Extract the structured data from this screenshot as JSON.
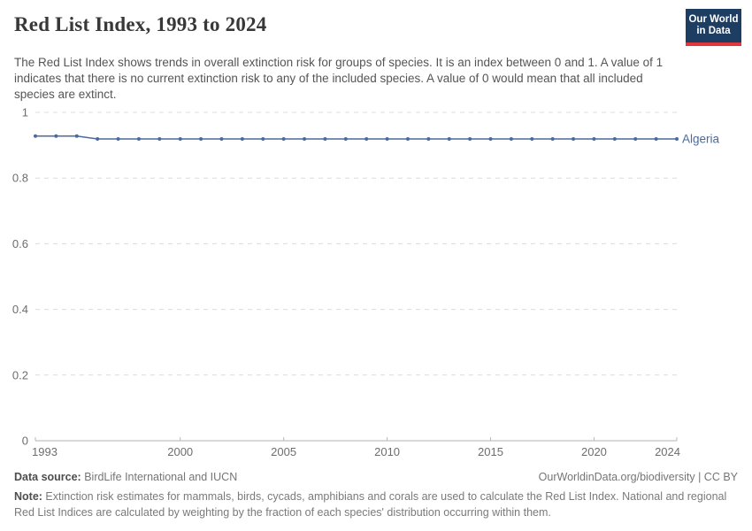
{
  "header": {
    "title": "Red List Index, 1993 to 2024",
    "subtitle": "The Red List Index shows trends in overall extinction risk for groups of species. It is an index between 0 and 1. A value of 1 indicates that there is no current extinction risk to any of the included species. A value of 0 would mean that all included species are extinct.",
    "logo": {
      "line1": "Our World",
      "line2": "in Data",
      "bg": "#1d3d63",
      "accent": "#e0373f"
    }
  },
  "chart_data": {
    "type": "line",
    "title": "Red List Index, 1993 to 2024",
    "xlabel": "",
    "ylabel": "",
    "xlim": [
      1993,
      2024
    ],
    "ylim": [
      0,
      1
    ],
    "xticks": [
      1993,
      2000,
      2005,
      2010,
      2015,
      2020,
      2024
    ],
    "yticks": [
      0,
      0.2,
      0.4,
      0.6,
      0.8,
      1
    ],
    "grid": "horizontal-dashed",
    "legend_position": "right-of-line",
    "series": [
      {
        "name": "Algeria",
        "color": "#4c6a9c",
        "x": [
          1993,
          1994,
          1995,
          1996,
          1997,
          1998,
          1999,
          2000,
          2001,
          2002,
          2003,
          2004,
          2005,
          2006,
          2007,
          2008,
          2009,
          2010,
          2011,
          2012,
          2013,
          2014,
          2015,
          2016,
          2017,
          2018,
          2019,
          2020,
          2021,
          2022,
          2023,
          2024
        ],
        "values": [
          0.928,
          0.928,
          0.928,
          0.919,
          0.919,
          0.919,
          0.919,
          0.919,
          0.919,
          0.919,
          0.919,
          0.919,
          0.919,
          0.919,
          0.919,
          0.919,
          0.919,
          0.919,
          0.919,
          0.919,
          0.919,
          0.919,
          0.919,
          0.919,
          0.919,
          0.919,
          0.919,
          0.919,
          0.919,
          0.919,
          0.919,
          0.919
        ]
      }
    ]
  },
  "footer": {
    "datasource_label": "Data source:",
    "datasource_value": " BirdLife International and IUCN",
    "credit": "OurWorldinData.org/biodiversity | CC BY",
    "note_label": "Note:",
    "note_value": " Extinction risk estimates for mammals, birds, cycads, amphibians and corals are used to calculate the Red List Index. National and regional Red List Indices are calculated by weighting by the fraction of each species' distribution occurring within them."
  }
}
